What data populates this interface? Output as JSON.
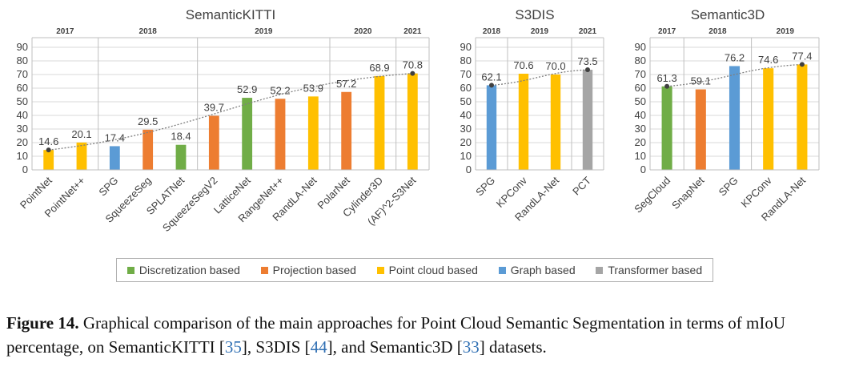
{
  "legend": [
    {
      "label": "Discretization based",
      "color": "#70ad47"
    },
    {
      "label": "Projection based",
      "color": "#ed7d31"
    },
    {
      "label": "Point cloud based",
      "color": "#ffc000"
    },
    {
      "label": "Graph based",
      "color": "#5b9bd5"
    },
    {
      "label": "Transformer based",
      "color": "#a5a5a5"
    }
  ],
  "caption": {
    "figure": "Figure 14.",
    "text1": " Graphical comparison of the main approaches for Point Cloud Semantic Segmentation in terms of mIoU percentage, on SemanticKITTI [",
    "ref1": "35",
    "text2": "], S3DIS [",
    "ref2": "44",
    "text3": "], and Semantic3D [",
    "ref3": "33",
    "text4": "] datasets."
  },
  "chart_data": [
    {
      "type": "bar",
      "title": "SemanticKITTI",
      "ylim": [
        0,
        90
      ],
      "yticks": [
        0,
        10,
        20,
        30,
        40,
        50,
        60,
        70,
        80,
        90
      ],
      "grid": true,
      "categories": [
        "PointNet",
        "PointNet++",
        "SPG",
        "SqueezeSeg",
        "SPLATNet",
        "SqueezeSegV2",
        "LatticeNet",
        "RangeNet++",
        "RandLA-Net",
        "PolarNet",
        "Cylinder3D",
        "(AF)^2-S3Net"
      ],
      "values": [
        14.6,
        20.1,
        17.4,
        29.5,
        18.4,
        39.7,
        52.9,
        52.2,
        53.9,
        57.2,
        68.9,
        70.8
      ],
      "value_labels": [
        "14.6",
        "20.1",
        "17.4",
        "29.5",
        "18.4",
        "39.7",
        "52.9",
        "52.2",
        "53.9",
        "57.2",
        "68.9",
        "70.8"
      ],
      "types": [
        "Point cloud based",
        "Point cloud based",
        "Graph based",
        "Projection based",
        "Discretization based",
        "Projection based",
        "Discretization based",
        "Projection based",
        "Point cloud based",
        "Projection based",
        "Point cloud based",
        "Point cloud based"
      ],
      "years": [
        {
          "label": "2017",
          "start": 0,
          "end": 2
        },
        {
          "label": "2018",
          "start": 2,
          "end": 5
        },
        {
          "label": "2019",
          "start": 5,
          "end": 9
        },
        {
          "label": "2020",
          "start": 9,
          "end": 11
        },
        {
          "label": "2021",
          "start": 11,
          "end": 12
        }
      ],
      "trend_points": [
        0,
        11
      ]
    },
    {
      "type": "bar",
      "title": "S3DIS",
      "ylim": [
        0,
        90
      ],
      "yticks": [
        0,
        10,
        20,
        30,
        40,
        50,
        60,
        70,
        80,
        90
      ],
      "grid": true,
      "categories": [
        "SPG",
        "KPConv",
        "RandLA-Net",
        "PCT"
      ],
      "values": [
        62.1,
        70.6,
        70.0,
        73.5
      ],
      "value_labels": [
        "62.1",
        "70.6",
        "70.0",
        "73.5"
      ],
      "types": [
        "Graph based",
        "Point cloud based",
        "Point cloud based",
        "Transformer based"
      ],
      "years": [
        {
          "label": "2018",
          "start": 0,
          "end": 1
        },
        {
          "label": "2019",
          "start": 1,
          "end": 3
        },
        {
          "label": "2021",
          "start": 3,
          "end": 4
        }
      ],
      "trend_points": [
        0,
        3
      ]
    },
    {
      "type": "bar",
      "title": "Semantic3D",
      "ylim": [
        0,
        90
      ],
      "yticks": [
        0,
        10,
        20,
        30,
        40,
        50,
        60,
        70,
        80,
        90
      ],
      "grid": true,
      "categories": [
        "SegCloud",
        "SnapNet",
        "SPG",
        "KPConv",
        "RandLA-Net"
      ],
      "values": [
        61.3,
        59.1,
        76.2,
        74.6,
        77.4
      ],
      "value_labels": [
        "61.3",
        "59.1",
        "76.2",
        "74.6",
        "77.4"
      ],
      "types": [
        "Discretization based",
        "Projection based",
        "Graph based",
        "Point cloud based",
        "Point cloud based"
      ],
      "years": [
        {
          "label": "2017",
          "start": 0,
          "end": 1
        },
        {
          "label": "2018",
          "start": 1,
          "end": 3
        },
        {
          "label": "2019",
          "start": 3,
          "end": 5
        }
      ],
      "trend_points": [
        0,
        4
      ]
    }
  ]
}
